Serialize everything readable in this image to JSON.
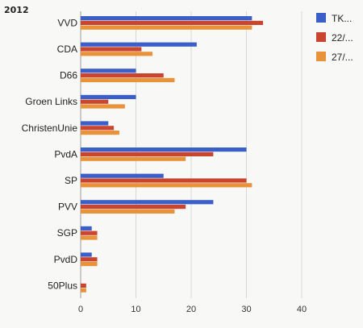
{
  "header": {
    "year": "2012"
  },
  "chart_data": {
    "type": "bar",
    "orientation": "horizontal",
    "title": "",
    "xlabel": "",
    "ylabel": "",
    "categories": [
      "VVD",
      "CDA",
      "D66",
      "Groen Links",
      "ChristenUnie",
      "PvdA",
      "SP",
      "PVV",
      "SGP",
      "PvdD",
      "50Plus"
    ],
    "series": [
      {
        "name": "TK...",
        "color": "#3a5fc8",
        "values": [
          31,
          21,
          10,
          10,
          5,
          30,
          15,
          24,
          2,
          2,
          0
        ]
      },
      {
        "name": "22/...",
        "color": "#c9452f",
        "values": [
          33,
          11,
          15,
          5,
          6,
          24,
          30,
          19,
          3,
          3,
          1
        ]
      },
      {
        "name": "27/...",
        "color": "#e8923a",
        "values": [
          31,
          13,
          17,
          8,
          7,
          19,
          31,
          17,
          3,
          3,
          1
        ]
      }
    ],
    "xlim": [
      0,
      40
    ],
    "xticks": [
      0,
      10,
      20,
      30,
      40
    ],
    "grid": true,
    "legend_position": "top-right"
  }
}
